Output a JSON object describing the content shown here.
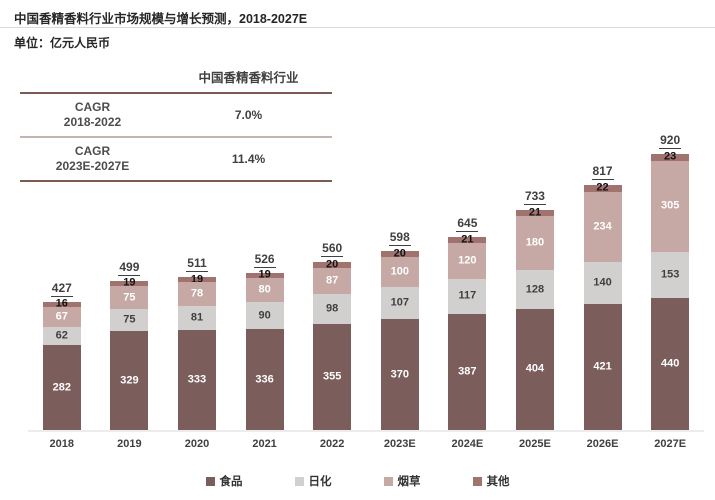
{
  "header": {
    "title": "中国香精香料行业市场规模与增长预测，2018-2027E",
    "unit": "单位：亿元人民币"
  },
  "table": {
    "header": "中国香精香料行业",
    "rows": [
      {
        "period_line1": "CAGR",
        "period_line2": "2018-2022",
        "value": "7.0%"
      },
      {
        "period_line1": "CAGR",
        "period_line2": "2023E-2027E",
        "value": "11.4%"
      }
    ]
  },
  "chart_data": {
    "type": "bar",
    "stacked": true,
    "title": "中国香精香料行业市场规模与增长预测，2018-2027E",
    "ylabel": "亿元人民币",
    "ylim": [
      0,
      960
    ],
    "grid": false,
    "legend_position": "bottom",
    "categories": [
      "2018",
      "2019",
      "2020",
      "2021",
      "2022",
      "2023E",
      "2024E",
      "2025E",
      "2026E",
      "2027E"
    ],
    "series": [
      {
        "name": "食品",
        "color": "#7b5d5c",
        "label_color": "#ffffff",
        "values": [
          282,
          329,
          333,
          336,
          355,
          370,
          387,
          404,
          421,
          440
        ]
      },
      {
        "name": "日化",
        "color": "#d2d0cf",
        "label_color": "#404040",
        "values": [
          62,
          75,
          81,
          90,
          98,
          107,
          117,
          128,
          140,
          153
        ]
      },
      {
        "name": "烟草",
        "color": "#c6a8a5",
        "label_color": "#ffffff",
        "values": [
          67,
          75,
          78,
          80,
          87,
          100,
          120,
          180,
          234,
          305
        ]
      },
      {
        "name": "其他",
        "color": "#a1736f",
        "label_color": "#111111",
        "values": [
          16,
          19,
          19,
          19,
          20,
          20,
          21,
          21,
          22,
          23
        ]
      }
    ],
    "totals": [
      427,
      499,
      511,
      526,
      560,
      598,
      645,
      733,
      817,
      920
    ]
  }
}
